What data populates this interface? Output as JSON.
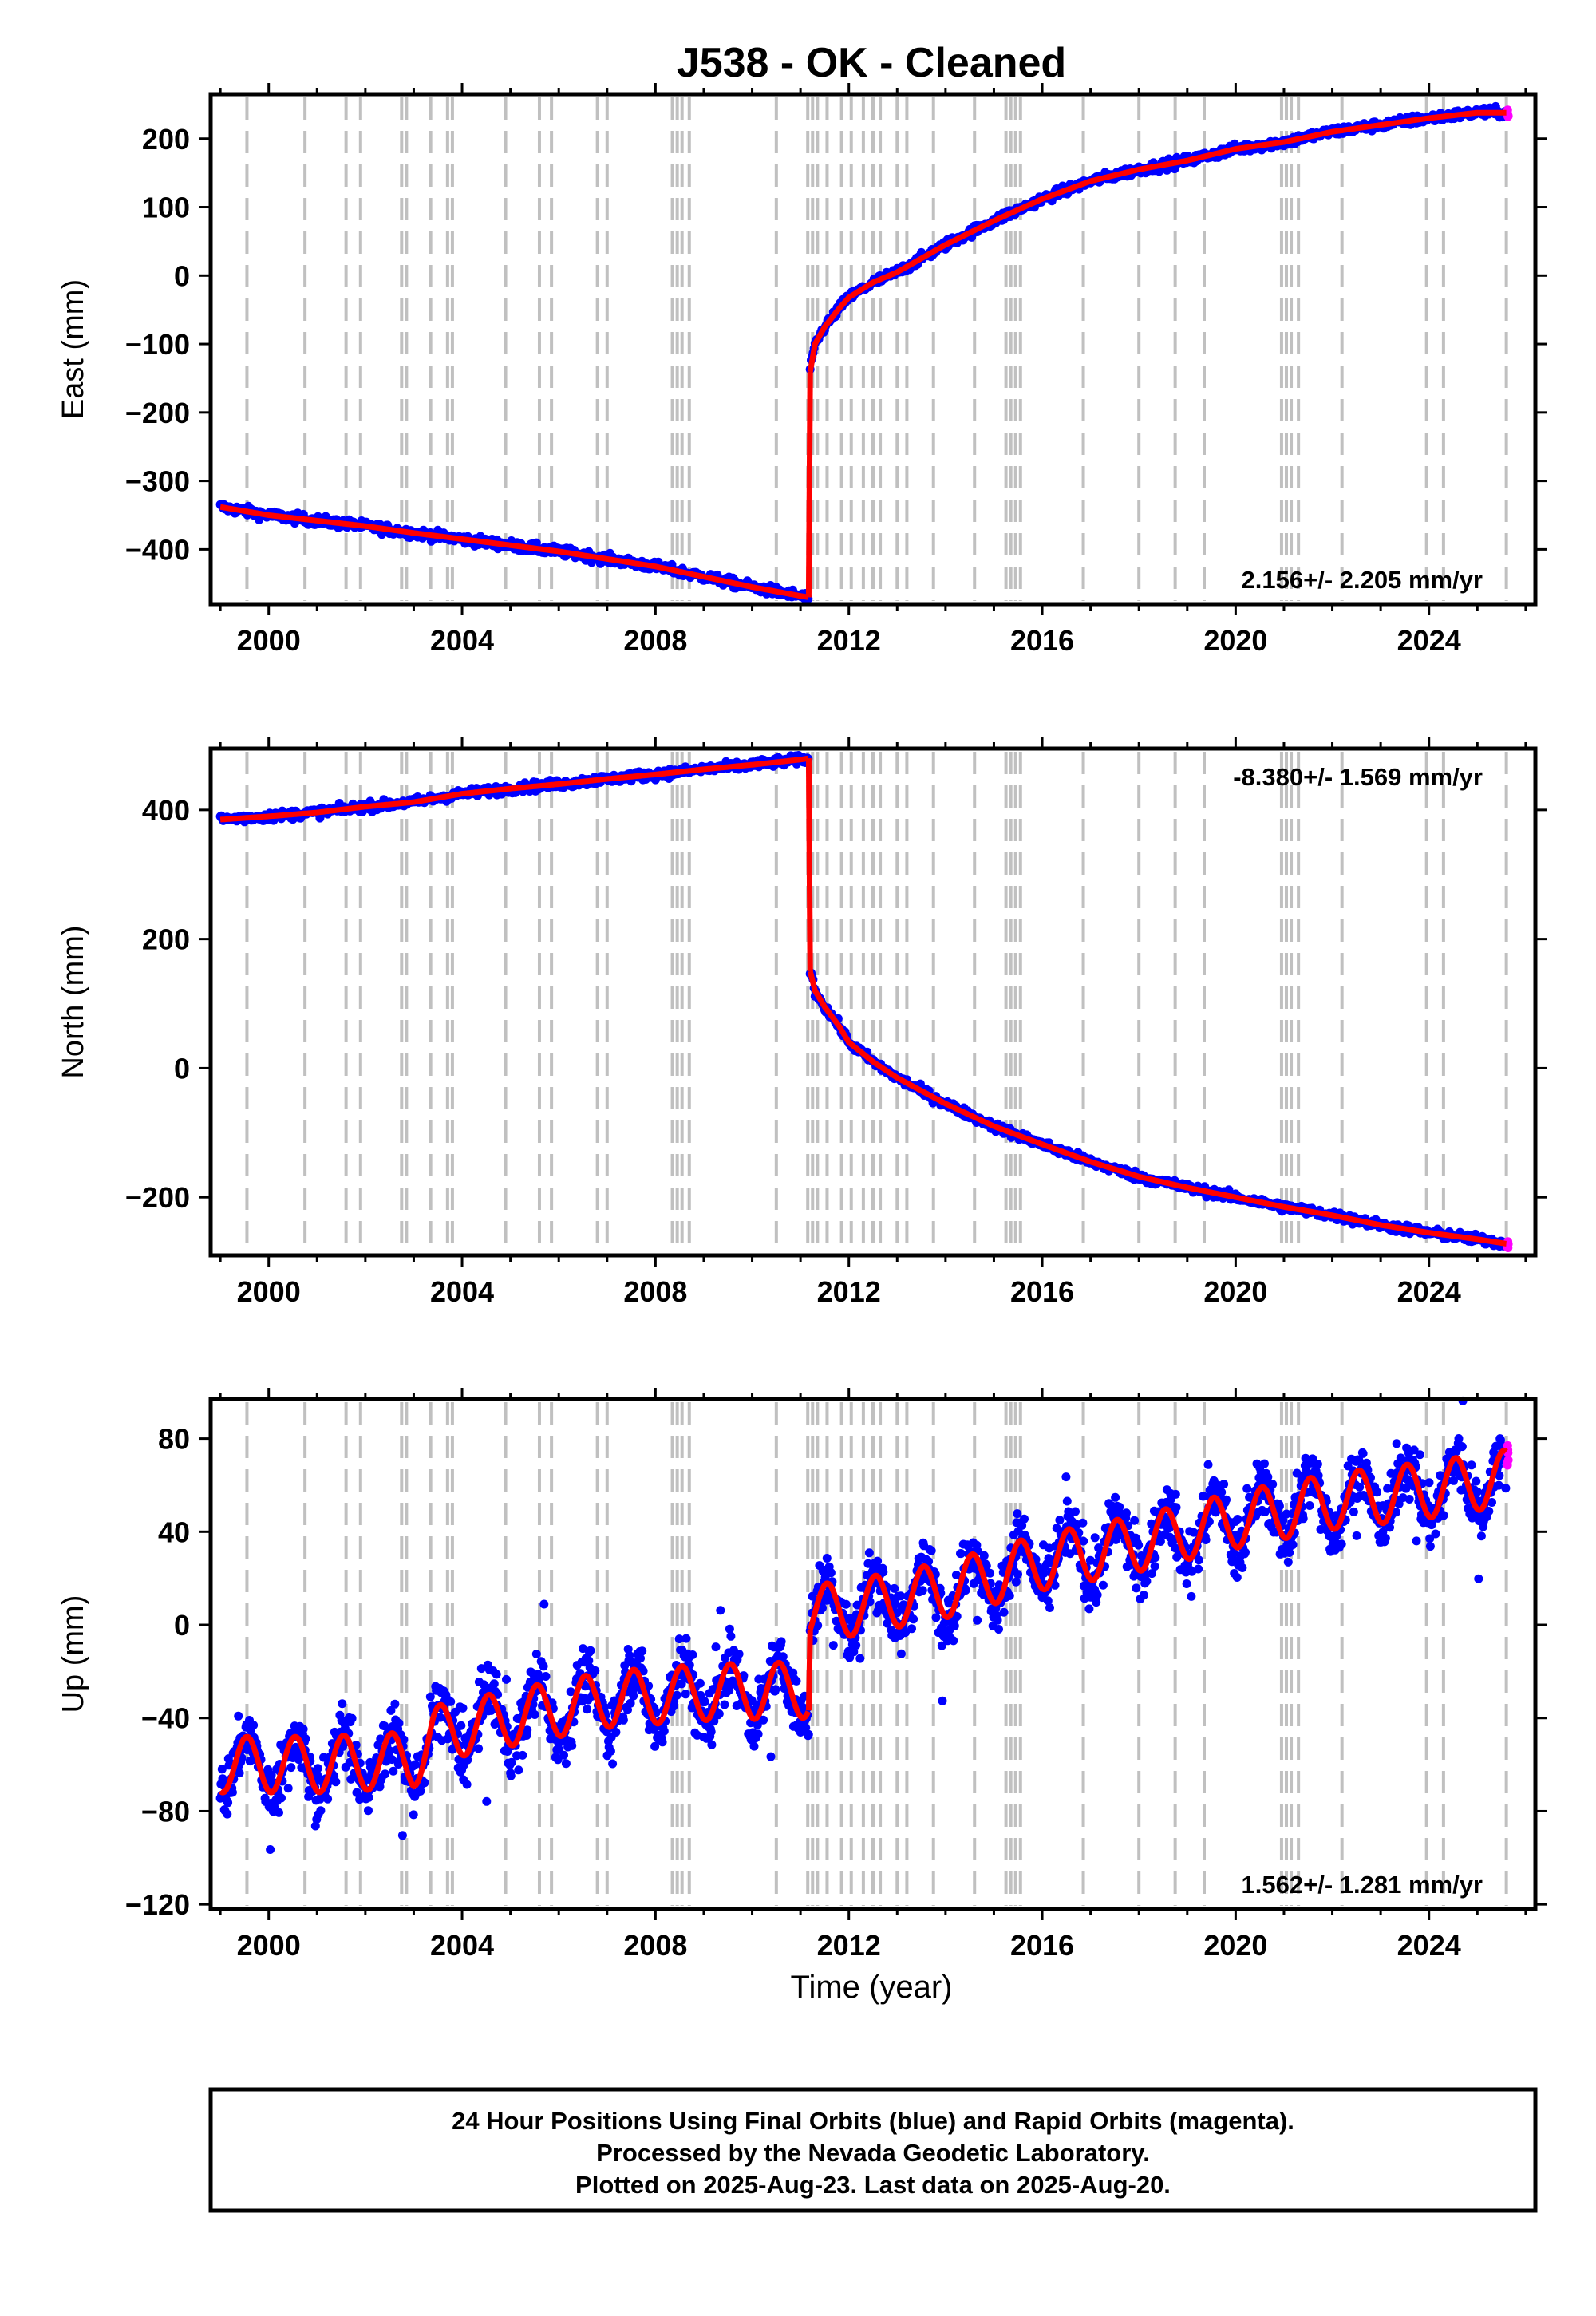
{
  "title": "J538  - OK - Cleaned",
  "colors": {
    "final_points": "#0000ff",
    "rapid_points": "#ff00ff",
    "model_line": "#ff0000",
    "event_lines": "#c0c0c0",
    "frame": "#000000"
  },
  "footer": {
    "line1": "24 Hour Positions Using Final Orbits (blue) and Rapid Orbits (magenta).",
    "line2": "Processed by the Nevada Geodetic Laboratory.",
    "line3": "Plotted on 2025-Aug-23. Last data on 2025-Aug-20."
  },
  "chart_data": [
    {
      "type": "scatter",
      "name": "east",
      "ylabel": "East (mm)",
      "xlabel": "",
      "xlim": [
        1998.8,
        2026.2
      ],
      "ylim": [
        -480,
        265
      ],
      "xticks": [
        2000,
        2004,
        2008,
        2012,
        2016,
        2020,
        2024
      ],
      "yticks": [
        -400,
        -300,
        -200,
        -100,
        0,
        100,
        200
      ],
      "ytick_labels": [
        "−400",
        "−300",
        "−200",
        "−100",
        "0",
        "100",
        "200"
      ],
      "rate_label": "2.156+/- 2.205 mm/yr",
      "rate_position": "bottom-right",
      "series": [
        {
          "segment": "pre-2011",
          "x": [
            1999.0,
            2000.0,
            2001.0,
            2002.0,
            2003.0,
            2004.0,
            2005.0,
            2006.0,
            2007.0,
            2008.0,
            2009.0,
            2010.0,
            2011.0,
            2011.17
          ],
          "y": [
            -338,
            -350,
            -358,
            -366,
            -376,
            -385,
            -394,
            -403,
            -414,
            -425,
            -440,
            -455,
            -468,
            -470
          ]
        },
        {
          "segment": "post-2011",
          "x": [
            2011.2,
            2011.3,
            2011.5,
            2011.8,
            2012.0,
            2012.5,
            2013.0,
            2014.0,
            2015.0,
            2016.0,
            2017.0,
            2018.0,
            2019.0,
            2020.0,
            2021.0,
            2022.0,
            2023.0,
            2024.0,
            2025.0,
            2025.6
          ],
          "y": [
            -140,
            -100,
            -75,
            -48,
            -32,
            -10,
            5,
            45,
            80,
            112,
            138,
            155,
            168,
            185,
            195,
            210,
            220,
            230,
            238,
            238
          ]
        }
      ]
    },
    {
      "type": "scatter",
      "name": "north",
      "ylabel": "North (mm)",
      "xlabel": "",
      "xlim": [
        1998.8,
        2026.2
      ],
      "ylim": [
        -290,
        495
      ],
      "xticks": [
        2000,
        2004,
        2008,
        2012,
        2016,
        2020,
        2024
      ],
      "yticks": [
        -200,
        0,
        200,
        400
      ],
      "ytick_labels": [
        "−200",
        "0",
        "200",
        "400"
      ],
      "rate_label": "-8.380+/- 1.569 mm/yr",
      "rate_position": "top-right",
      "series": [
        {
          "segment": "pre-2011",
          "x": [
            1999.0,
            2000.0,
            2001.0,
            2002.0,
            2003.0,
            2004.0,
            2005.0,
            2006.0,
            2007.0,
            2008.0,
            2009.0,
            2010.0,
            2011.0,
            2011.17
          ],
          "y": [
            385,
            390,
            396,
            405,
            412,
            425,
            433,
            440,
            448,
            455,
            463,
            470,
            478,
            480
          ]
        },
        {
          "segment": "post-2011",
          "x": [
            2011.2,
            2011.3,
            2011.5,
            2011.8,
            2012.0,
            2012.5,
            2013.0,
            2014.0,
            2015.0,
            2016.0,
            2017.0,
            2018.0,
            2019.0,
            2020.0,
            2021.0,
            2022.0,
            2023.0,
            2024.0,
            2025.0,
            2025.6
          ],
          "y": [
            150,
            120,
            95,
            65,
            40,
            10,
            -15,
            -55,
            -90,
            -118,
            -145,
            -168,
            -185,
            -200,
            -215,
            -228,
            -243,
            -255,
            -265,
            -272
          ]
        }
      ]
    },
    {
      "type": "scatter",
      "name": "up",
      "ylabel": "Up (mm)",
      "xlabel": "Time (year)",
      "xlim": [
        1998.8,
        2026.2
      ],
      "ylim": [
        -122,
        97
      ],
      "xticks": [
        2000,
        2004,
        2008,
        2012,
        2016,
        2020,
        2024
      ],
      "yticks": [
        -120,
        -80,
        -40,
        0,
        40,
        80
      ],
      "ytick_labels": [
        "−120",
        "−80",
        "−40",
        "0",
        "40",
        "80"
      ],
      "rate_label": "1.562+/- 1.281 mm/yr",
      "rate_position": "bottom-right",
      "seasonal_amplitude": 12,
      "series": [
        {
          "segment": "pre-2011",
          "x": [
            1999.0,
            2001.0,
            2003.0,
            2003.4,
            2005.0,
            2007.0,
            2009.0,
            2011.0,
            2011.17
          ],
          "y": [
            -60,
            -60,
            -58,
            -47,
            -40,
            -32,
            -29,
            -28,
            -28
          ]
        },
        {
          "segment": "post-2011",
          "x": [
            2011.2,
            2012.0,
            2014.0,
            2016.0,
            2018.0,
            2020.0,
            2022.0,
            2024.0,
            2025.6
          ],
          "y": [
            5,
            7,
            15,
            27,
            35,
            45,
            53,
            58,
            63
          ]
        }
      ]
    }
  ],
  "event_lines_x": [
    1999.55,
    2000.75,
    2001.6,
    2001.9,
    2002.75,
    2002.85,
    2003.35,
    2003.7,
    2003.8,
    2004.9,
    2005.6,
    2005.85,
    2006.8,
    2007.0,
    2008.35,
    2008.45,
    2008.55,
    2008.7,
    2010.5,
    2011.15,
    2011.25,
    2011.35,
    2011.55,
    2011.85,
    2012.05,
    2012.3,
    2012.5,
    2012.65,
    2013.0,
    2013.2,
    2013.75,
    2014.6,
    2015.25,
    2015.35,
    2015.45,
    2015.55,
    2016.85,
    2018.0,
    2018.75,
    2019.35,
    2020.95,
    2021.05,
    2021.15,
    2021.3,
    2022.2,
    2023.95,
    2024.3,
    2025.6
  ]
}
